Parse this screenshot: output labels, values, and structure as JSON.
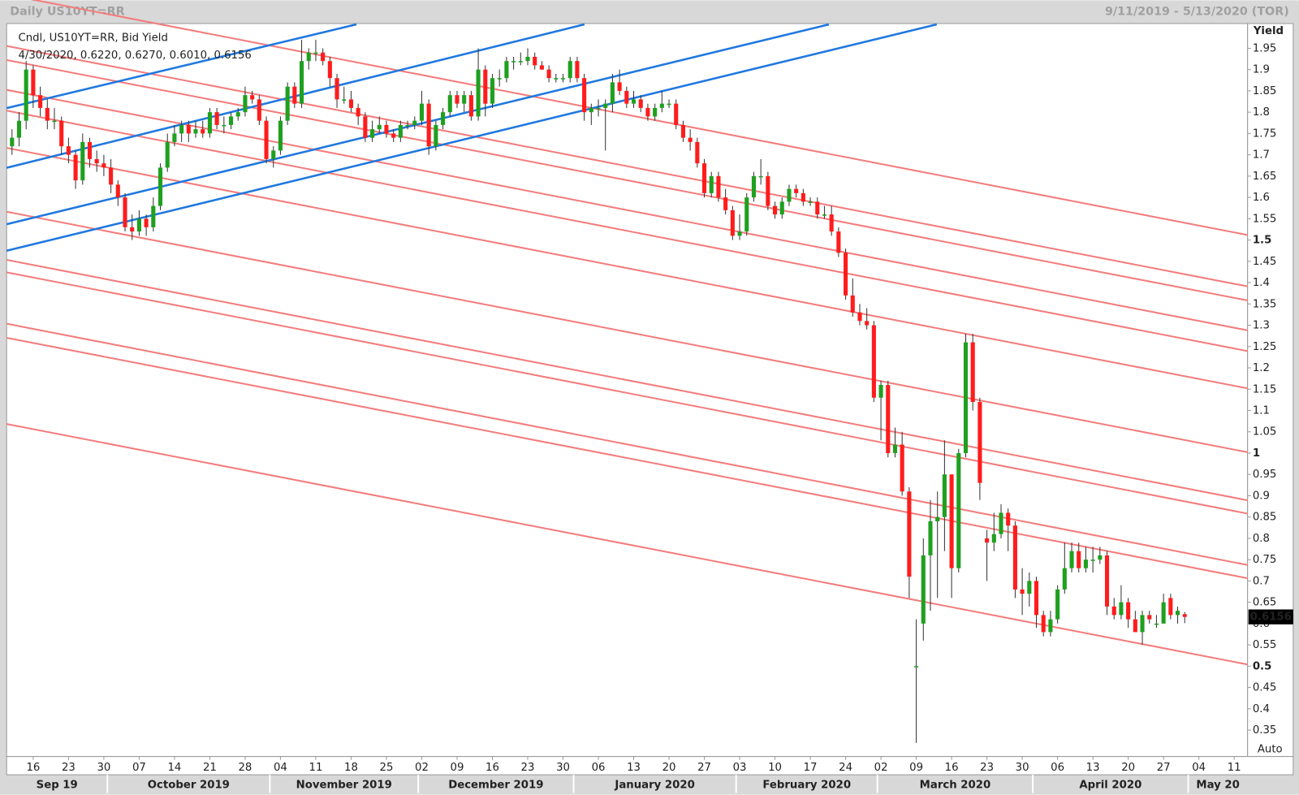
{
  "chart_data": {
    "type": "candlestick",
    "title": "Daily US10YT=RR",
    "date_range": "9/11/2019 - 5/13/2020 (TOR)",
    "legend": "Cndl, US10YT=RR, Bid Yield",
    "info": "4/30/2020, 0.6220, 0.6270, 0.6010, 0.6156",
    "y_label": "Yield",
    "scale_mode": "Auto",
    "up_color": "#1fa01f",
    "down_color": "#ff1c1c",
    "ylim": [
      0.288,
      2.008
    ],
    "yticks": [
      0.35,
      0.4,
      0.45,
      0.5,
      0.55,
      0.6,
      0.65,
      0.7,
      0.75,
      0.8,
      0.85,
      0.9,
      0.95,
      1,
      1.05,
      1.1,
      1.15,
      1.2,
      1.25,
      1.3,
      1.35,
      1.4,
      1.45,
      1.5,
      1.55,
      1.6,
      1.65,
      1.7,
      1.75,
      1.8,
      1.85,
      1.9,
      1.95
    ],
    "xlim": [
      -0.76,
      174.9
    ],
    "xticks": [
      {
        "value": 3,
        "label": "16"
      },
      {
        "value": 8,
        "label": "23"
      },
      {
        "value": 13,
        "label": "30"
      },
      {
        "value": 18,
        "label": "07"
      },
      {
        "value": 23,
        "label": "14"
      },
      {
        "value": 28,
        "label": "21"
      },
      {
        "value": 33,
        "label": "28"
      },
      {
        "value": 38,
        "label": "04"
      },
      {
        "value": 43,
        "label": "11"
      },
      {
        "value": 48,
        "label": "18"
      },
      {
        "value": 53,
        "label": "25"
      },
      {
        "value": 58,
        "label": "02"
      },
      {
        "value": 63,
        "label": "09"
      },
      {
        "value": 68,
        "label": "16"
      },
      {
        "value": 73,
        "label": "23"
      },
      {
        "value": 78,
        "label": "30"
      },
      {
        "value": 83,
        "label": "06"
      },
      {
        "value": 88,
        "label": "13"
      },
      {
        "value": 93,
        "label": "20"
      },
      {
        "value": 98,
        "label": "27"
      },
      {
        "value": 103,
        "label": "03"
      },
      {
        "value": 108,
        "label": "10"
      },
      {
        "value": 113,
        "label": "17"
      },
      {
        "value": 118,
        "label": "24"
      },
      {
        "value": 123,
        "label": "02"
      },
      {
        "value": 128,
        "label": "09"
      },
      {
        "value": 133,
        "label": "16"
      },
      {
        "value": 138,
        "label": "23"
      },
      {
        "value": 143,
        "label": "30"
      },
      {
        "value": 148,
        "label": "06"
      },
      {
        "value": 153,
        "label": "13"
      },
      {
        "value": 158,
        "label": "20"
      },
      {
        "value": 163,
        "label": "27"
      },
      {
        "value": 168,
        "label": "04"
      },
      {
        "value": 173,
        "label": "11"
      }
    ],
    "months": [
      {
        "label": "Sep 19",
        "start": 0
      },
      {
        "label": "October 2019",
        "start": 14
      },
      {
        "label": "November 2019",
        "start": 37
      },
      {
        "label": "December 2019",
        "start": 58
      },
      {
        "label": "January 2020",
        "start": 80
      },
      {
        "label": "February 2020",
        "start": 103
      },
      {
        "label": "March 2020",
        "start": 123
      },
      {
        "label": "April 2020",
        "start": 145
      },
      {
        "label": "May 20",
        "start": 167
      }
    ],
    "candles": [
      [
        1.72,
        1.76,
        1.7,
        1.74
      ],
      [
        1.74,
        1.8,
        1.72,
        1.78
      ],
      [
        1.78,
        1.92,
        1.76,
        1.9
      ],
      [
        1.9,
        1.91,
        1.81,
        1.84
      ],
      [
        1.84,
        1.86,
        1.79,
        1.81
      ],
      [
        1.81,
        1.83,
        1.76,
        1.78
      ],
      [
        1.78,
        1.81,
        1.76,
        1.78
      ],
      [
        1.78,
        1.79,
        1.7,
        1.72
      ],
      [
        1.72,
        1.74,
        1.68,
        1.7
      ],
      [
        1.7,
        1.71,
        1.62,
        1.64
      ],
      [
        1.64,
        1.75,
        1.63,
        1.73
      ],
      [
        1.73,
        1.74,
        1.67,
        1.69
      ],
      [
        1.69,
        1.71,
        1.66,
        1.68
      ],
      [
        1.68,
        1.7,
        1.65,
        1.67
      ],
      [
        1.67,
        1.69,
        1.61,
        1.63
      ],
      [
        1.63,
        1.64,
        1.58,
        1.6
      ],
      [
        1.6,
        1.61,
        1.52,
        1.53
      ],
      [
        1.53,
        1.56,
        1.5,
        1.52
      ],
      [
        1.52,
        1.57,
        1.51,
        1.55
      ],
      [
        1.55,
        1.56,
        1.51,
        1.53
      ],
      [
        1.53,
        1.6,
        1.52,
        1.58
      ],
      [
        1.58,
        1.68,
        1.57,
        1.67
      ],
      [
        1.67,
        1.75,
        1.66,
        1.73
      ],
      [
        1.73,
        1.77,
        1.72,
        1.75
      ],
      [
        1.75,
        1.78,
        1.73,
        1.77
      ],
      [
        1.77,
        1.78,
        1.73,
        1.75
      ],
      [
        1.75,
        1.78,
        1.74,
        1.76
      ],
      [
        1.76,
        1.78,
        1.74,
        1.75
      ],
      [
        1.75,
        1.81,
        1.74,
        1.8
      ],
      [
        1.8,
        1.81,
        1.76,
        1.77
      ],
      [
        1.77,
        1.79,
        1.75,
        1.77
      ],
      [
        1.77,
        1.8,
        1.76,
        1.79
      ],
      [
        1.79,
        1.81,
        1.78,
        1.8
      ],
      [
        1.8,
        1.86,
        1.79,
        1.84
      ],
      [
        1.84,
        1.85,
        1.82,
        1.83
      ],
      [
        1.83,
        1.84,
        1.77,
        1.78
      ],
      [
        1.78,
        1.79,
        1.68,
        1.69
      ],
      [
        1.69,
        1.72,
        1.67,
        1.71
      ],
      [
        1.71,
        1.79,
        1.7,
        1.78
      ],
      [
        1.78,
        1.87,
        1.77,
        1.86
      ],
      [
        1.86,
        1.87,
        1.81,
        1.82
      ],
      [
        1.82,
        1.97,
        1.81,
        1.92
      ],
      [
        1.92,
        1.95,
        1.9,
        1.94
      ],
      [
        1.94,
        1.97,
        1.92,
        1.94
      ],
      [
        1.94,
        1.95,
        1.91,
        1.92
      ],
      [
        1.92,
        1.93,
        1.86,
        1.88
      ],
      [
        1.88,
        1.89,
        1.81,
        1.83
      ],
      [
        1.83,
        1.86,
        1.82,
        1.83
      ],
      [
        1.83,
        1.85,
        1.8,
        1.81
      ],
      [
        1.81,
        1.82,
        1.77,
        1.79
      ],
      [
        1.79,
        1.8,
        1.73,
        1.74
      ],
      [
        1.74,
        1.78,
        1.73,
        1.76
      ],
      [
        1.76,
        1.79,
        1.75,
        1.77
      ],
      [
        1.77,
        1.78,
        1.74,
        1.75
      ],
      [
        1.75,
        1.76,
        1.73,
        1.74
      ],
      [
        1.74,
        1.78,
        1.73,
        1.77
      ],
      [
        1.77,
        1.78,
        1.76,
        1.77
      ],
      [
        1.77,
        1.79,
        1.76,
        1.78
      ],
      [
        1.78,
        1.85,
        1.77,
        1.82
      ],
      [
        1.82,
        1.83,
        1.7,
        1.72
      ],
      [
        1.72,
        1.78,
        1.71,
        1.77
      ],
      [
        1.77,
        1.81,
        1.76,
        1.8
      ],
      [
        1.8,
        1.85,
        1.79,
        1.84
      ],
      [
        1.84,
        1.85,
        1.81,
        1.82
      ],
      [
        1.82,
        1.85,
        1.8,
        1.84
      ],
      [
        1.84,
        1.85,
        1.78,
        1.79
      ],
      [
        1.79,
        1.95,
        1.78,
        1.9
      ],
      [
        1.9,
        1.91,
        1.79,
        1.82
      ],
      [
        1.82,
        1.89,
        1.81,
        1.88
      ],
      [
        1.88,
        1.9,
        1.86,
        1.88
      ],
      [
        1.88,
        1.93,
        1.87,
        1.92
      ],
      [
        1.92,
        1.93,
        1.9,
        1.92
      ],
      [
        1.92,
        1.94,
        1.91,
        1.92
      ],
      [
        1.92,
        1.95,
        1.91,
        1.93
      ],
      [
        1.93,
        1.94,
        1.9,
        1.91
      ],
      [
        1.91,
        1.92,
        1.9,
        1.9
      ],
      [
        1.9,
        1.91,
        1.87,
        1.88
      ],
      [
        1.88,
        1.89,
        1.87,
        1.88
      ],
      [
        1.88,
        1.89,
        1.87,
        1.88
      ],
      [
        1.88,
        1.93,
        1.87,
        1.92
      ],
      [
        1.92,
        1.93,
        1.87,
        1.88
      ],
      [
        1.88,
        1.89,
        1.78,
        1.8
      ],
      [
        1.8,
        1.82,
        1.77,
        1.81
      ],
      [
        1.81,
        1.83,
        1.79,
        1.81
      ],
      [
        1.81,
        1.83,
        1.71,
        1.82
      ],
      [
        1.82,
        1.89,
        1.8,
        1.87
      ],
      [
        1.87,
        1.9,
        1.84,
        1.85
      ],
      [
        1.85,
        1.86,
        1.81,
        1.82
      ],
      [
        1.82,
        1.85,
        1.81,
        1.83
      ],
      [
        1.83,
        1.84,
        1.8,
        1.81
      ],
      [
        1.81,
        1.82,
        1.78,
        1.79
      ],
      [
        1.79,
        1.82,
        1.78,
        1.81
      ],
      [
        1.81,
        1.85,
        1.8,
        1.82
      ],
      [
        1.82,
        1.83,
        1.81,
        1.82
      ],
      [
        1.82,
        1.83,
        1.76,
        1.77
      ],
      [
        1.77,
        1.78,
        1.73,
        1.74
      ],
      [
        1.74,
        1.76,
        1.71,
        1.73
      ],
      [
        1.73,
        1.74,
        1.67,
        1.68
      ],
      [
        1.68,
        1.69,
        1.6,
        1.61
      ],
      [
        1.61,
        1.66,
        1.6,
        1.65
      ],
      [
        1.65,
        1.66,
        1.59,
        1.6
      ],
      [
        1.6,
        1.62,
        1.56,
        1.57
      ],
      [
        1.57,
        1.58,
        1.5,
        1.51
      ],
      [
        1.51,
        1.56,
        1.5,
        1.52
      ],
      [
        1.52,
        1.61,
        1.51,
        1.6
      ],
      [
        1.6,
        1.66,
        1.59,
        1.65
      ],
      [
        1.65,
        1.69,
        1.63,
        1.65
      ],
      [
        1.65,
        1.66,
        1.57,
        1.58
      ],
      [
        1.58,
        1.59,
        1.55,
        1.56
      ],
      [
        1.56,
        1.6,
        1.55,
        1.59
      ],
      [
        1.59,
        1.63,
        1.58,
        1.62
      ],
      [
        1.62,
        1.63,
        1.6,
        1.61
      ],
      [
        1.61,
        1.62,
        1.58,
        1.59
      ],
      [
        1.59,
        1.6,
        1.58,
        1.59
      ],
      [
        1.59,
        1.6,
        1.55,
        1.56
      ],
      [
        1.56,
        1.58,
        1.55,
        1.56
      ],
      [
        1.56,
        1.58,
        1.51,
        1.52
      ],
      [
        1.52,
        1.53,
        1.46,
        1.47
      ],
      [
        1.47,
        1.48,
        1.36,
        1.37
      ],
      [
        1.37,
        1.41,
        1.32,
        1.33
      ],
      [
        1.33,
        1.35,
        1.3,
        1.31
      ],
      [
        1.31,
        1.34,
        1.29,
        1.3
      ],
      [
        1.3,
        1.31,
        1.12,
        1.13
      ],
      [
        1.13,
        1.17,
        1.03,
        1.16
      ],
      [
        1.16,
        1.17,
        0.99,
        1.0
      ],
      [
        1.0,
        1.06,
        0.99,
        1.02
      ],
      [
        1.02,
        1.05,
        0.9,
        0.91
      ],
      [
        0.91,
        0.92,
        0.66,
        0.71
      ],
      [
        0.5,
        0.61,
        0.32,
        0.5
      ],
      [
        0.6,
        0.8,
        0.56,
        0.76
      ],
      [
        0.76,
        0.89,
        0.63,
        0.84
      ],
      [
        0.84,
        0.91,
        0.66,
        0.85
      ],
      [
        0.85,
        1.03,
        0.77,
        0.95
      ],
      [
        0.95,
        0.95,
        0.66,
        0.73
      ],
      [
        0.73,
        1.01,
        0.72,
        1.0
      ],
      [
        1.0,
        1.28,
        0.99,
        1.26
      ],
      [
        1.26,
        1.28,
        1.1,
        1.12
      ],
      [
        1.12,
        1.13,
        0.89,
        0.93
      ],
      [
        0.8,
        0.82,
        0.7,
        0.79
      ],
      [
        0.79,
        0.86,
        0.77,
        0.81
      ],
      [
        0.81,
        0.88,
        0.8,
        0.86
      ],
      [
        0.86,
        0.87,
        0.77,
        0.83
      ],
      [
        0.83,
        0.84,
        0.66,
        0.68
      ],
      [
        0.68,
        0.73,
        0.62,
        0.67
      ],
      [
        0.67,
        0.72,
        0.64,
        0.7
      ],
      [
        0.7,
        0.71,
        0.59,
        0.62
      ],
      [
        0.62,
        0.63,
        0.57,
        0.58
      ],
      [
        0.58,
        0.63,
        0.57,
        0.61
      ],
      [
        0.61,
        0.69,
        0.6,
        0.68
      ],
      [
        0.68,
        0.79,
        0.67,
        0.73
      ],
      [
        0.73,
        0.79,
        0.72,
        0.77
      ],
      [
        0.77,
        0.79,
        0.72,
        0.73
      ],
      [
        0.73,
        0.78,
        0.72,
        0.75
      ],
      [
        0.75,
        0.78,
        0.72,
        0.75
      ],
      [
        0.75,
        0.78,
        0.74,
        0.76
      ],
      [
        0.76,
        0.77,
        0.62,
        0.64
      ],
      [
        0.64,
        0.66,
        0.61,
        0.62
      ],
      [
        0.62,
        0.69,
        0.61,
        0.65
      ],
      [
        0.65,
        0.66,
        0.59,
        0.61
      ],
      [
        0.61,
        0.63,
        0.58,
        0.58
      ],
      [
        0.58,
        0.63,
        0.55,
        0.62
      ],
      [
        0.62,
        0.63,
        0.6,
        0.61
      ],
      [
        0.6,
        0.62,
        0.59,
        0.6
      ],
      [
        0.6,
        0.67,
        0.6,
        0.65
      ],
      [
        0.66,
        0.67,
        0.61,
        0.62
      ],
      [
        0.62,
        0.64,
        0.6,
        0.63
      ],
      [
        0.622,
        0.627,
        0.601,
        0.6156
      ]
    ]
  }
}
